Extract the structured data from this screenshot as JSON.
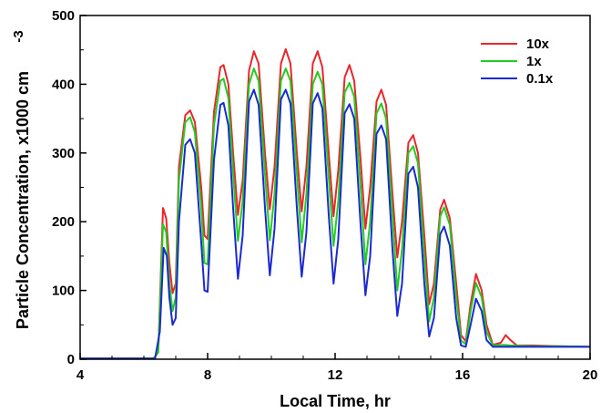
{
  "chart_data": {
    "type": "line",
    "title": "",
    "xlabel": "Local Time, hr",
    "ylabel": "Particle Concentration, x1000 cm",
    "ylabel_superscript": "-3",
    "xlim": [
      4,
      20
    ],
    "ylim": [
      0,
      500
    ],
    "x_ticks": [
      "4",
      "8",
      "12",
      "16",
      "20"
    ],
    "y_ticks": [
      "0",
      "100",
      "200",
      "300",
      "400",
      "500"
    ],
    "grid": false,
    "legend_position": "top-right",
    "series": [
      {
        "name": "10x",
        "color": "#e8262b",
        "points": [
          [
            4,
            1
          ],
          [
            6.3,
            1
          ],
          [
            6.45,
            10
          ],
          [
            6.6,
            220
          ],
          [
            6.7,
            205
          ],
          [
            6.8,
            140
          ],
          [
            6.9,
            96
          ],
          [
            7.0,
            110
          ],
          [
            7.1,
            280
          ],
          [
            7.3,
            355
          ],
          [
            7.45,
            362
          ],
          [
            7.6,
            345
          ],
          [
            7.8,
            250
          ],
          [
            7.9,
            180
          ],
          [
            8.0,
            175
          ],
          [
            8.2,
            360
          ],
          [
            8.4,
            425
          ],
          [
            8.5,
            428
          ],
          [
            8.65,
            400
          ],
          [
            8.8,
            300
          ],
          [
            8.95,
            210
          ],
          [
            9.1,
            260
          ],
          [
            9.3,
            420
          ],
          [
            9.45,
            448
          ],
          [
            9.6,
            430
          ],
          [
            9.8,
            300
          ],
          [
            9.95,
            218
          ],
          [
            10.1,
            280
          ],
          [
            10.3,
            430
          ],
          [
            10.45,
            451
          ],
          [
            10.6,
            430
          ],
          [
            10.8,
            300
          ],
          [
            10.95,
            215
          ],
          [
            11.1,
            280
          ],
          [
            11.3,
            430
          ],
          [
            11.45,
            448
          ],
          [
            11.6,
            425
          ],
          [
            11.8,
            300
          ],
          [
            11.95,
            208
          ],
          [
            12.1,
            275
          ],
          [
            12.3,
            410
          ],
          [
            12.45,
            428
          ],
          [
            12.6,
            405
          ],
          [
            12.8,
            290
          ],
          [
            12.95,
            190
          ],
          [
            13.1,
            250
          ],
          [
            13.3,
            375
          ],
          [
            13.45,
            392
          ],
          [
            13.6,
            370
          ],
          [
            13.8,
            240
          ],
          [
            13.95,
            148
          ],
          [
            14.1,
            200
          ],
          [
            14.3,
            315
          ],
          [
            14.45,
            326
          ],
          [
            14.6,
            300
          ],
          [
            14.8,
            180
          ],
          [
            14.95,
            80
          ],
          [
            15.1,
            110
          ],
          [
            15.3,
            218
          ],
          [
            15.42,
            232
          ],
          [
            15.6,
            205
          ],
          [
            15.8,
            110
          ],
          [
            15.95,
            35
          ],
          [
            16.1,
            26
          ],
          [
            16.25,
            80
          ],
          [
            16.42,
            124
          ],
          [
            16.6,
            100
          ],
          [
            16.75,
            50
          ],
          [
            16.95,
            21
          ],
          [
            17.2,
            24
          ],
          [
            17.35,
            35
          ],
          [
            17.5,
            28
          ],
          [
            17.7,
            20
          ],
          [
            18.2,
            20
          ],
          [
            19,
            19
          ],
          [
            20,
            18
          ]
        ]
      },
      {
        "name": "1x",
        "color": "#22cc22",
        "points": [
          [
            4,
            1
          ],
          [
            6.3,
            1
          ],
          [
            6.45,
            10
          ],
          [
            6.6,
            196
          ],
          [
            6.7,
            185
          ],
          [
            6.8,
            110
          ],
          [
            6.9,
            70
          ],
          [
            7.0,
            90
          ],
          [
            7.1,
            260
          ],
          [
            7.3,
            345
          ],
          [
            7.45,
            352
          ],
          [
            7.6,
            330
          ],
          [
            7.8,
            220
          ],
          [
            7.9,
            140
          ],
          [
            8.0,
            138
          ],
          [
            8.2,
            340
          ],
          [
            8.4,
            405
          ],
          [
            8.5,
            408
          ],
          [
            8.65,
            380
          ],
          [
            8.8,
            270
          ],
          [
            8.95,
            172
          ],
          [
            9.1,
            230
          ],
          [
            9.3,
            400
          ],
          [
            9.45,
            423
          ],
          [
            9.6,
            405
          ],
          [
            9.8,
            270
          ],
          [
            9.95,
            173
          ],
          [
            10.1,
            240
          ],
          [
            10.3,
            405
          ],
          [
            10.45,
            423
          ],
          [
            10.6,
            405
          ],
          [
            10.8,
            270
          ],
          [
            10.95,
            170
          ],
          [
            11.1,
            240
          ],
          [
            11.3,
            400
          ],
          [
            11.45,
            418
          ],
          [
            11.6,
            400
          ],
          [
            11.8,
            265
          ],
          [
            11.95,
            165
          ],
          [
            12.1,
            230
          ],
          [
            12.3,
            388
          ],
          [
            12.45,
            402
          ],
          [
            12.6,
            382
          ],
          [
            12.8,
            250
          ],
          [
            12.95,
            138
          ],
          [
            13.1,
            200
          ],
          [
            13.3,
            358
          ],
          [
            13.45,
            372
          ],
          [
            13.6,
            350
          ],
          [
            13.8,
            210
          ],
          [
            13.95,
            100
          ],
          [
            14.1,
            160
          ],
          [
            14.3,
            300
          ],
          [
            14.45,
            310
          ],
          [
            14.6,
            285
          ],
          [
            14.8,
            150
          ],
          [
            14.95,
            55
          ],
          [
            15.1,
            90
          ],
          [
            15.3,
            208
          ],
          [
            15.42,
            221
          ],
          [
            15.6,
            195
          ],
          [
            15.8,
            90
          ],
          [
            15.95,
            27
          ],
          [
            16.1,
            22
          ],
          [
            16.25,
            70
          ],
          [
            16.42,
            111
          ],
          [
            16.6,
            90
          ],
          [
            16.75,
            40
          ],
          [
            16.95,
            20
          ],
          [
            17.3,
            21
          ],
          [
            17.5,
            20
          ],
          [
            18.2,
            19
          ],
          [
            19,
            19
          ],
          [
            20,
            18
          ]
        ]
      },
      {
        "name": "0.1x",
        "color": "#1a2ad0",
        "points": [
          [
            4,
            1
          ],
          [
            6.35,
            1
          ],
          [
            6.5,
            40
          ],
          [
            6.62,
            162
          ],
          [
            6.72,
            150
          ],
          [
            6.8,
            90
          ],
          [
            6.9,
            50
          ],
          [
            7.0,
            60
          ],
          [
            7.1,
            200
          ],
          [
            7.3,
            312
          ],
          [
            7.45,
            320
          ],
          [
            7.6,
            300
          ],
          [
            7.8,
            170
          ],
          [
            7.9,
            100
          ],
          [
            8.0,
            98
          ],
          [
            8.2,
            290
          ],
          [
            8.4,
            370
          ],
          [
            8.5,
            373
          ],
          [
            8.65,
            340
          ],
          [
            8.8,
            220
          ],
          [
            8.95,
            117
          ],
          [
            9.1,
            180
          ],
          [
            9.3,
            375
          ],
          [
            9.45,
            392
          ],
          [
            9.6,
            370
          ],
          [
            9.8,
            220
          ],
          [
            9.95,
            122
          ],
          [
            10.1,
            190
          ],
          [
            10.3,
            378
          ],
          [
            10.45,
            392
          ],
          [
            10.6,
            372
          ],
          [
            10.8,
            220
          ],
          [
            10.95,
            120
          ],
          [
            11.1,
            185
          ],
          [
            11.3,
            372
          ],
          [
            11.45,
            387
          ],
          [
            11.6,
            365
          ],
          [
            11.8,
            210
          ],
          [
            11.95,
            110
          ],
          [
            12.1,
            175
          ],
          [
            12.3,
            358
          ],
          [
            12.45,
            371
          ],
          [
            12.6,
            350
          ],
          [
            12.8,
            195
          ],
          [
            12.95,
            93
          ],
          [
            13.1,
            150
          ],
          [
            13.3,
            328
          ],
          [
            13.45,
            340
          ],
          [
            13.6,
            320
          ],
          [
            13.8,
            160
          ],
          [
            13.95,
            63
          ],
          [
            14.1,
            110
          ],
          [
            14.3,
            270
          ],
          [
            14.45,
            280
          ],
          [
            14.6,
            250
          ],
          [
            14.8,
            110
          ],
          [
            14.95,
            33
          ],
          [
            15.1,
            60
          ],
          [
            15.3,
            182
          ],
          [
            15.42,
            193
          ],
          [
            15.6,
            165
          ],
          [
            15.8,
            60
          ],
          [
            15.95,
            20
          ],
          [
            16.1,
            18
          ],
          [
            16.25,
            50
          ],
          [
            16.42,
            88
          ],
          [
            16.6,
            70
          ],
          [
            16.75,
            28
          ],
          [
            16.95,
            18
          ],
          [
            17.5,
            18
          ],
          [
            18.2,
            18
          ],
          [
            19,
            18
          ],
          [
            20,
            18
          ]
        ]
      }
    ]
  }
}
